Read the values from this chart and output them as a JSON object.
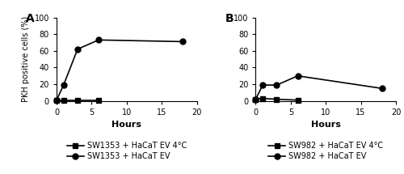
{
  "panel_A": {
    "title": "A",
    "series": [
      {
        "label": "SW1353 + HaCaT EV 4°C",
        "x": [
          0,
          1,
          3,
          6
        ],
        "y": [
          1,
          1,
          1,
          1
        ],
        "marker": "s",
        "color": "#000000",
        "linestyle": "-"
      },
      {
        "label": "SW1353 + HaCaT EV",
        "x": [
          0,
          1,
          3,
          6,
          18
        ],
        "y": [
          1,
          19,
          62,
          73,
          71
        ],
        "marker": "o",
        "color": "#000000",
        "linestyle": "-"
      }
    ],
    "xlabel": "Hours",
    "ylabel": "PKH positive cells (%)",
    "xlim": [
      0,
      20
    ],
    "ylim": [
      0,
      100
    ],
    "xticks": [
      0,
      5,
      10,
      15,
      20
    ],
    "yticks": [
      0,
      20,
      40,
      60,
      80,
      100
    ]
  },
  "panel_B": {
    "title": "B",
    "series": [
      {
        "label": "SW982 + HaCaT EV 4°C",
        "x": [
          0,
          1,
          3,
          6
        ],
        "y": [
          2,
          3,
          2,
          1
        ],
        "marker": "s",
        "color": "#000000",
        "linestyle": "-"
      },
      {
        "label": "SW982 + HaCaT EV",
        "x": [
          0,
          1,
          3,
          6,
          18
        ],
        "y": [
          2,
          19,
          19,
          30,
          15
        ],
        "marker": "o",
        "color": "#000000",
        "linestyle": "-"
      }
    ],
    "xlabel": "Hours",
    "ylabel": "",
    "xlim": [
      0,
      20
    ],
    "ylim": [
      0,
      100
    ],
    "xticks": [
      0,
      5,
      10,
      15,
      20
    ],
    "yticks": [
      0,
      20,
      40,
      60,
      80,
      100
    ]
  },
  "line_width": 1.2,
  "marker_size": 5,
  "tick_font_size": 7,
  "label_font_size": 8,
  "title_font_size": 10,
  "legend_font_size": 7,
  "legend_marker_size": 5,
  "background_color": "#ffffff"
}
